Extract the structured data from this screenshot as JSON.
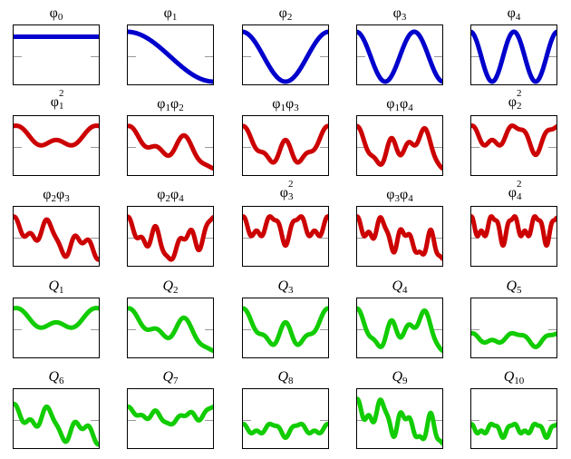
{
  "colors": {
    "basis": "#0000cc",
    "product": "#cc0000",
    "q": "#11cc00",
    "frame": "#000000",
    "midline": "#999999"
  },
  "chart_data": [
    {
      "type": "line",
      "title": "φ0",
      "label": {
        "base": "φ",
        "sub": "0"
      },
      "color": "basis",
      "freqs": [
        0
      ]
    },
    {
      "type": "line",
      "title": "φ1",
      "label": {
        "base": "φ",
        "sub": "1"
      },
      "color": "basis",
      "freqs": [
        1
      ]
    },
    {
      "type": "line",
      "title": "φ2",
      "label": {
        "base": "φ",
        "sub": "2"
      },
      "color": "basis",
      "freqs": [
        2
      ]
    },
    {
      "type": "line",
      "title": "φ3",
      "label": {
        "base": "φ",
        "sub": "3"
      },
      "color": "basis",
      "freqs": [
        3
      ]
    },
    {
      "type": "line",
      "title": "φ4",
      "label": {
        "base": "φ",
        "sub": "4"
      },
      "color": "basis",
      "freqs": [
        4
      ]
    },
    {
      "type": "line",
      "title": "φ1²",
      "label": {
        "base": "φ",
        "sub": "1",
        "sup": "2"
      },
      "color": "product",
      "freqs": [
        1,
        1
      ]
    },
    {
      "type": "line",
      "title": "φ1φ2",
      "label": {
        "pair": [
          [
            "φ",
            "1"
          ],
          [
            "φ",
            "2"
          ]
        ]
      },
      "color": "product",
      "freqs": [
        1,
        2
      ]
    },
    {
      "type": "line",
      "title": "φ1φ3",
      "label": {
        "pair": [
          [
            "φ",
            "1"
          ],
          [
            "φ",
            "3"
          ]
        ]
      },
      "color": "product",
      "freqs": [
        1,
        3
      ]
    },
    {
      "type": "line",
      "title": "φ1φ4",
      "label": {
        "pair": [
          [
            "φ",
            "1"
          ],
          [
            "φ",
            "4"
          ]
        ]
      },
      "color": "product",
      "freqs": [
        1,
        4
      ]
    },
    {
      "type": "line",
      "title": "φ2²",
      "label": {
        "base": "φ",
        "sub": "2",
        "sup": "2"
      },
      "color": "product",
      "freqs": [
        2,
        2
      ]
    },
    {
      "type": "line",
      "title": "φ2φ3",
      "label": {
        "pair": [
          [
            "φ",
            "2"
          ],
          [
            "φ",
            "3"
          ]
        ]
      },
      "color": "product",
      "freqs": [
        2,
        3
      ]
    },
    {
      "type": "line",
      "title": "φ2φ4",
      "label": {
        "pair": [
          [
            "φ",
            "2"
          ],
          [
            "φ",
            "4"
          ]
        ]
      },
      "color": "product",
      "freqs": [
        2,
        4
      ]
    },
    {
      "type": "line",
      "title": "φ3²",
      "label": {
        "base": "φ",
        "sub": "3",
        "sup": "2"
      },
      "color": "product",
      "freqs": [
        3,
        3
      ]
    },
    {
      "type": "line",
      "title": "φ3φ4",
      "label": {
        "pair": [
          [
            "φ",
            "3"
          ],
          [
            "φ",
            "4"
          ]
        ]
      },
      "color": "product",
      "freqs": [
        3,
        4
      ]
    },
    {
      "type": "line",
      "title": "φ4²",
      "label": {
        "base": "φ",
        "sub": "4",
        "sup": "2"
      },
      "color": "product",
      "freqs": [
        4,
        4
      ]
    },
    {
      "type": "line",
      "title": "Q1",
      "label": {
        "q": "Q",
        "sub": "1"
      },
      "color": "q",
      "freqs": [
        1,
        1
      ]
    },
    {
      "type": "line",
      "title": "Q2",
      "label": {
        "q": "Q",
        "sub": "2"
      },
      "color": "q",
      "freqs": [
        1,
        2
      ]
    },
    {
      "type": "line",
      "title": "Q3",
      "label": {
        "q": "Q",
        "sub": "3"
      },
      "color": "q",
      "freqs": [
        1,
        3
      ]
    },
    {
      "type": "line",
      "title": "Q4",
      "label": {
        "q": "Q",
        "sub": "4"
      },
      "color": "q",
      "freqs": [
        1,
        4
      ]
    },
    {
      "type": "line",
      "title": "Q5",
      "label": {
        "q": "Q",
        "sub": "5"
      },
      "color": "q",
      "freqs": [
        2,
        2
      ],
      "scale": 0.4,
      "offset": -0.55
    },
    {
      "type": "line",
      "title": "Q6",
      "label": {
        "q": "Q",
        "sub": "6"
      },
      "color": "q",
      "freqs": [
        2,
        3
      ],
      "scale": 0.8,
      "offset": -0.15
    },
    {
      "type": "line",
      "title": "Q7",
      "label": {
        "q": "Q",
        "sub": "7"
      },
      "color": "q",
      "freqs": [
        2,
        4
      ],
      "scale": 0.35,
      "offset": 0.2
    },
    {
      "type": "line",
      "title": "Q8",
      "label": {
        "q": "Q",
        "sub": "8"
      },
      "color": "q",
      "freqs": [
        3,
        3
      ],
      "scale": 0.4,
      "offset": -0.55
    },
    {
      "type": "line",
      "title": "Q9",
      "label": {
        "q": "Q",
        "sub": "9"
      },
      "color": "q",
      "freqs": [
        3,
        4
      ],
      "scale": 0.9,
      "offset": -0.05
    },
    {
      "type": "line",
      "title": "Q10",
      "label": {
        "q": "Q",
        "sub": "10"
      },
      "color": "q",
      "freqs": [
        4,
        4
      ],
      "scale": 0.4,
      "offset": -0.55
    }
  ]
}
